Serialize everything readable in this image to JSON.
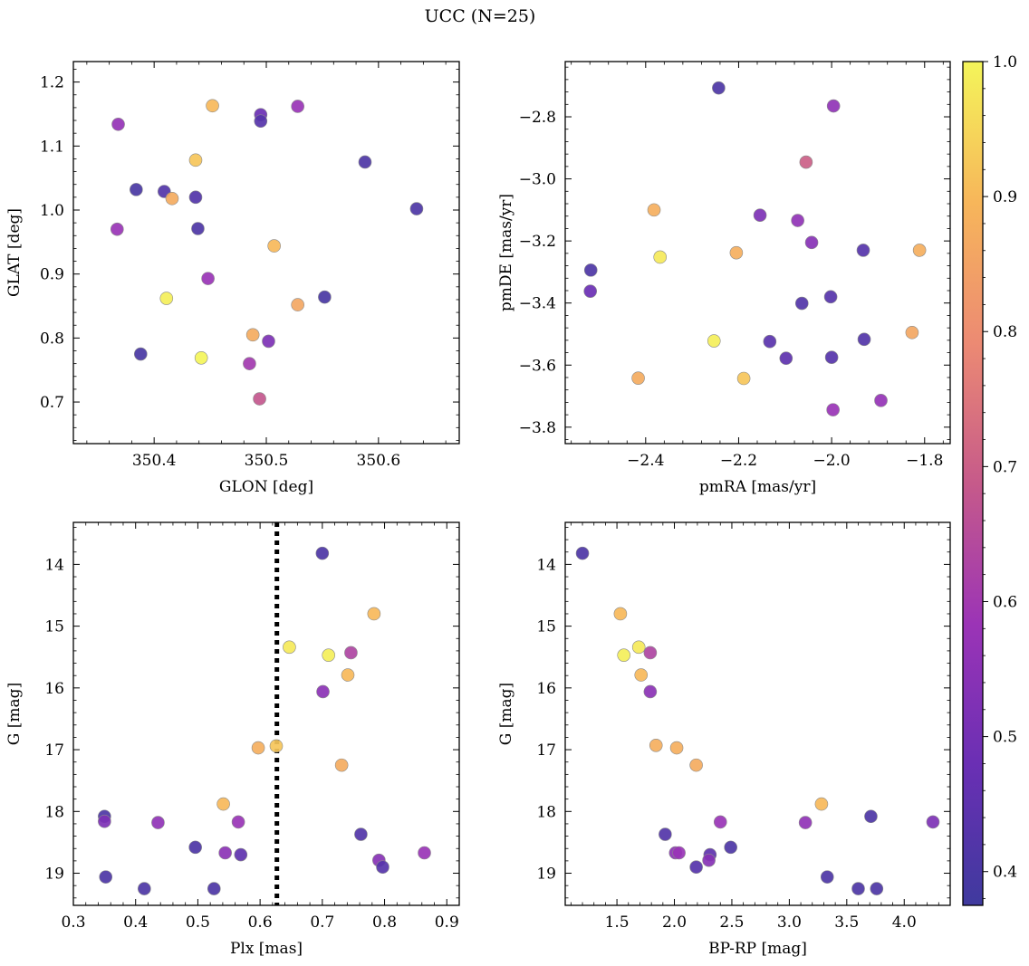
{
  "figure": {
    "title": "UCC (N=25)"
  },
  "colorbar": {
    "range": [
      0.375,
      1.0
    ],
    "ticks": [
      {
        "value": 0.4,
        "label": "0.4"
      },
      {
        "value": 0.5,
        "label": "0.5"
      },
      {
        "value": 0.6,
        "label": "0.6"
      },
      {
        "value": 0.7,
        "label": "0.7"
      },
      {
        "value": 0.8,
        "label": "0.8"
      },
      {
        "value": 0.9,
        "label": "0.9"
      },
      {
        "value": 1.0,
        "label": "1.0"
      }
    ],
    "colormap": "plasma",
    "colors": [
      "#3f3a9e",
      "#6a2fb4",
      "#9b34b6",
      "#c65a8a",
      "#ec8a73",
      "#f7b65a",
      "#f4f55a"
    ]
  },
  "reference_line": {
    "x": 0.627,
    "panel": "plx-g"
  },
  "chart_data": [
    {
      "id": "glon-glat",
      "type": "scatter",
      "xlabel": "GLON [deg]",
      "ylabel": "GLAT [deg]",
      "xlim": [
        350.328,
        350.672
      ],
      "ylim": [
        0.635,
        1.232
      ],
      "invert_y": false,
      "xticks": [
        {
          "v": 350.4,
          "t": "350.4"
        },
        {
          "v": 350.5,
          "t": "350.5"
        },
        {
          "v": 350.6,
          "t": "350.6"
        }
      ],
      "yticks": [
        {
          "v": 0.7,
          "t": "0.7"
        },
        {
          "v": 0.8,
          "t": "0.8"
        },
        {
          "v": 0.9,
          "t": "0.9"
        },
        {
          "v": 1.0,
          "t": "1.0"
        },
        {
          "v": 1.1,
          "t": "1.1"
        },
        {
          "v": 1.2,
          "t": "1.2"
        }
      ],
      "points": [
        {
          "x": 350.452,
          "y": 1.163,
          "c": 0.9
        },
        {
          "x": 350.495,
          "y": 1.149,
          "c": 0.48
        },
        {
          "x": 350.495,
          "y": 1.139,
          "c": 0.43
        },
        {
          "x": 350.528,
          "y": 1.162,
          "c": 0.58
        },
        {
          "x": 350.368,
          "y": 1.134,
          "c": 0.57
        },
        {
          "x": 350.437,
          "y": 1.078,
          "c": 0.92
        },
        {
          "x": 350.588,
          "y": 1.075,
          "c": 0.41
        },
        {
          "x": 350.384,
          "y": 1.032,
          "c": 0.4
        },
        {
          "x": 350.409,
          "y": 1.029,
          "c": 0.42
        },
        {
          "x": 350.416,
          "y": 1.018,
          "c": 0.87
        },
        {
          "x": 350.437,
          "y": 1.02,
          "c": 0.42
        },
        {
          "x": 350.634,
          "y": 1.002,
          "c": 0.41
        },
        {
          "x": 350.367,
          "y": 0.97,
          "c": 0.58
        },
        {
          "x": 350.439,
          "y": 0.971,
          "c": 0.41
        },
        {
          "x": 350.507,
          "y": 0.944,
          "c": 0.9
        },
        {
          "x": 350.411,
          "y": 0.862,
          "c": 0.99
        },
        {
          "x": 350.448,
          "y": 0.893,
          "c": 0.58
        },
        {
          "x": 350.552,
          "y": 0.864,
          "c": 0.4
        },
        {
          "x": 350.528,
          "y": 0.852,
          "c": 0.86
        },
        {
          "x": 350.488,
          "y": 0.805,
          "c": 0.87
        },
        {
          "x": 350.502,
          "y": 0.795,
          "c": 0.52
        },
        {
          "x": 350.388,
          "y": 0.775,
          "c": 0.4
        },
        {
          "x": 350.442,
          "y": 0.769,
          "c": 1.0
        },
        {
          "x": 350.485,
          "y": 0.76,
          "c": 0.6
        },
        {
          "x": 350.494,
          "y": 0.705,
          "c": 0.68
        }
      ]
    },
    {
      "id": "pmra-pmde",
      "type": "scatter",
      "xlabel": "pmRA [mas/yr]",
      "ylabel": "pmDE [mas/yr]",
      "xlim": [
        -2.573,
        -1.745
      ],
      "ylim": [
        -3.853,
        -2.622
      ],
      "invert_y": false,
      "xticks": [
        {
          "v": -2.4,
          "t": "−2.4"
        },
        {
          "v": -2.2,
          "t": "−2.2"
        },
        {
          "v": -2.0,
          "t": "−2.0"
        },
        {
          "v": -1.8,
          "t": "−1.8"
        }
      ],
      "yticks": [
        {
          "v": -3.8,
          "t": "−3.8"
        },
        {
          "v": -3.6,
          "t": "−3.6"
        },
        {
          "v": -3.4,
          "t": "−3.4"
        },
        {
          "v": -3.2,
          "t": "−3.2"
        },
        {
          "v": -3.0,
          "t": "−3.0"
        },
        {
          "v": -2.8,
          "t": "−2.8"
        }
      ],
      "points": [
        {
          "x": -2.243,
          "y": -2.707,
          "c": 0.41
        },
        {
          "x": -1.996,
          "y": -2.765,
          "c": 0.56
        },
        {
          "x": -2.055,
          "y": -2.946,
          "c": 0.7
        },
        {
          "x": -2.382,
          "y": -3.1,
          "c": 0.88
        },
        {
          "x": -2.154,
          "y": -3.117,
          "c": 0.52
        },
        {
          "x": -2.073,
          "y": -3.134,
          "c": 0.56
        },
        {
          "x": -2.043,
          "y": -3.205,
          "c": 0.54
        },
        {
          "x": -1.932,
          "y": -3.23,
          "c": 0.43
        },
        {
          "x": -1.811,
          "y": -3.23,
          "c": 0.88
        },
        {
          "x": -2.205,
          "y": -3.238,
          "c": 0.88
        },
        {
          "x": -2.369,
          "y": -3.252,
          "c": 0.98
        },
        {
          "x": -2.518,
          "y": -3.294,
          "c": 0.41
        },
        {
          "x": -2.519,
          "y": -3.362,
          "c": 0.48
        },
        {
          "x": -2.002,
          "y": -3.38,
          "c": 0.43
        },
        {
          "x": -2.064,
          "y": -3.401,
          "c": 0.42
        },
        {
          "x": -1.827,
          "y": -3.495,
          "c": 0.86
        },
        {
          "x": -1.93,
          "y": -3.517,
          "c": 0.42
        },
        {
          "x": -2.253,
          "y": -3.522,
          "c": 0.99
        },
        {
          "x": -2.133,
          "y": -3.524,
          "c": 0.44
        },
        {
          "x": -2.0,
          "y": -3.575,
          "c": 0.43
        },
        {
          "x": -2.098,
          "y": -3.578,
          "c": 0.45
        },
        {
          "x": -2.416,
          "y": -3.642,
          "c": 0.87
        },
        {
          "x": -2.189,
          "y": -3.643,
          "c": 0.92
        },
        {
          "x": -1.894,
          "y": -3.714,
          "c": 0.57
        },
        {
          "x": -1.997,
          "y": -3.744,
          "c": 0.58
        }
      ]
    },
    {
      "id": "plx-g",
      "type": "scatter",
      "xlabel": "Plx [mas]",
      "ylabel": "G [mag]",
      "xlim": [
        0.3,
        0.92
      ],
      "ylim": [
        13.32,
        19.52
      ],
      "invert_y": true,
      "xticks": [
        {
          "v": 0.3,
          "t": "0.3"
        },
        {
          "v": 0.4,
          "t": "0.4"
        },
        {
          "v": 0.5,
          "t": "0.5"
        },
        {
          "v": 0.6,
          "t": "0.6"
        },
        {
          "v": 0.7,
          "t": "0.7"
        },
        {
          "v": 0.8,
          "t": "0.8"
        },
        {
          "v": 0.9,
          "t": "0.9"
        }
      ],
      "yticks": [
        {
          "v": 14,
          "t": "14"
        },
        {
          "v": 15,
          "t": "15"
        },
        {
          "v": 16,
          "t": "16"
        },
        {
          "v": 17,
          "t": "17"
        },
        {
          "v": 18,
          "t": "18"
        },
        {
          "v": 19,
          "t": "19"
        }
      ],
      "points": [
        {
          "x": 0.7,
          "y": 13.82,
          "c": 0.41
        },
        {
          "x": 0.783,
          "y": 14.8,
          "c": 0.9
        },
        {
          "x": 0.647,
          "y": 15.34,
          "c": 0.98
        },
        {
          "x": 0.746,
          "y": 15.43,
          "c": 0.63
        },
        {
          "x": 0.71,
          "y": 15.47,
          "c": 0.99
        },
        {
          "x": 0.741,
          "y": 15.79,
          "c": 0.9
        },
        {
          "x": 0.701,
          "y": 16.06,
          "c": 0.55
        },
        {
          "x": 0.597,
          "y": 16.97,
          "c": 0.88
        },
        {
          "x": 0.626,
          "y": 16.94,
          "c": 0.92
        },
        {
          "x": 0.731,
          "y": 17.25,
          "c": 0.87
        },
        {
          "x": 0.541,
          "y": 17.88,
          "c": 0.9
        },
        {
          "x": 0.35,
          "y": 18.08,
          "c": 0.41
        },
        {
          "x": 0.35,
          "y": 18.16,
          "c": 0.52
        },
        {
          "x": 0.436,
          "y": 18.18,
          "c": 0.56
        },
        {
          "x": 0.565,
          "y": 18.17,
          "c": 0.58
        },
        {
          "x": 0.762,
          "y": 18.37,
          "c": 0.42
        },
        {
          "x": 0.496,
          "y": 18.58,
          "c": 0.41
        },
        {
          "x": 0.544,
          "y": 18.67,
          "c": 0.55
        },
        {
          "x": 0.569,
          "y": 18.7,
          "c": 0.45
        },
        {
          "x": 0.864,
          "y": 18.67,
          "c": 0.58
        },
        {
          "x": 0.791,
          "y": 18.79,
          "c": 0.54
        },
        {
          "x": 0.797,
          "y": 18.9,
          "c": 0.43
        },
        {
          "x": 0.352,
          "y": 19.06,
          "c": 0.41
        },
        {
          "x": 0.414,
          "y": 19.25,
          "c": 0.41
        },
        {
          "x": 0.526,
          "y": 19.25,
          "c": 0.41
        }
      ]
    },
    {
      "id": "bprp-g",
      "type": "scatter",
      "xlabel": "BP-RP [mag]",
      "ylabel": "G [mag]",
      "xlim": [
        1.05,
        4.4
      ],
      "ylim": [
        13.32,
        19.52
      ],
      "invert_y": true,
      "xticks": [
        {
          "v": 1.5,
          "t": "1.5"
        },
        {
          "v": 2.0,
          "t": "2.0"
        },
        {
          "v": 2.5,
          "t": "2.5"
        },
        {
          "v": 3.0,
          "t": "3.0"
        },
        {
          "v": 3.5,
          "t": "3.5"
        },
        {
          "v": 4.0,
          "t": "4.0"
        }
      ],
      "yticks": [
        {
          "v": 14,
          "t": "14"
        },
        {
          "v": 15,
          "t": "15"
        },
        {
          "v": 16,
          "t": "16"
        },
        {
          "v": 17,
          "t": "17"
        },
        {
          "v": 18,
          "t": "18"
        },
        {
          "v": 19,
          "t": "19"
        }
      ],
      "points": [
        {
          "x": 1.2,
          "y": 13.82,
          "c": 0.41
        },
        {
          "x": 1.53,
          "y": 14.8,
          "c": 0.9
        },
        {
          "x": 1.69,
          "y": 15.34,
          "c": 0.98
        },
        {
          "x": 1.79,
          "y": 15.43,
          "c": 0.63
        },
        {
          "x": 1.56,
          "y": 15.47,
          "c": 0.99
        },
        {
          "x": 1.71,
          "y": 15.79,
          "c": 0.9
        },
        {
          "x": 1.79,
          "y": 16.06,
          "c": 0.55
        },
        {
          "x": 1.84,
          "y": 16.93,
          "c": 0.88
        },
        {
          "x": 2.02,
          "y": 16.97,
          "c": 0.88
        },
        {
          "x": 2.19,
          "y": 17.25,
          "c": 0.87
        },
        {
          "x": 3.28,
          "y": 17.88,
          "c": 0.9
        },
        {
          "x": 3.71,
          "y": 18.08,
          "c": 0.41
        },
        {
          "x": 2.4,
          "y": 18.17,
          "c": 0.58
        },
        {
          "x": 3.14,
          "y": 18.18,
          "c": 0.56
        },
        {
          "x": 4.25,
          "y": 18.17,
          "c": 0.52
        },
        {
          "x": 1.92,
          "y": 18.37,
          "c": 0.42
        },
        {
          "x": 2.49,
          "y": 18.58,
          "c": 0.41
        },
        {
          "x": 2.01,
          "y": 18.67,
          "c": 0.55
        },
        {
          "x": 2.04,
          "y": 18.67,
          "c": 0.58
        },
        {
          "x": 2.31,
          "y": 18.7,
          "c": 0.45
        },
        {
          "x": 2.3,
          "y": 18.79,
          "c": 0.54
        },
        {
          "x": 2.19,
          "y": 18.9,
          "c": 0.43
        },
        {
          "x": 3.33,
          "y": 19.06,
          "c": 0.41
        },
        {
          "x": 3.6,
          "y": 19.25,
          "c": 0.41
        },
        {
          "x": 3.76,
          "y": 19.25,
          "c": 0.41
        }
      ]
    }
  ]
}
